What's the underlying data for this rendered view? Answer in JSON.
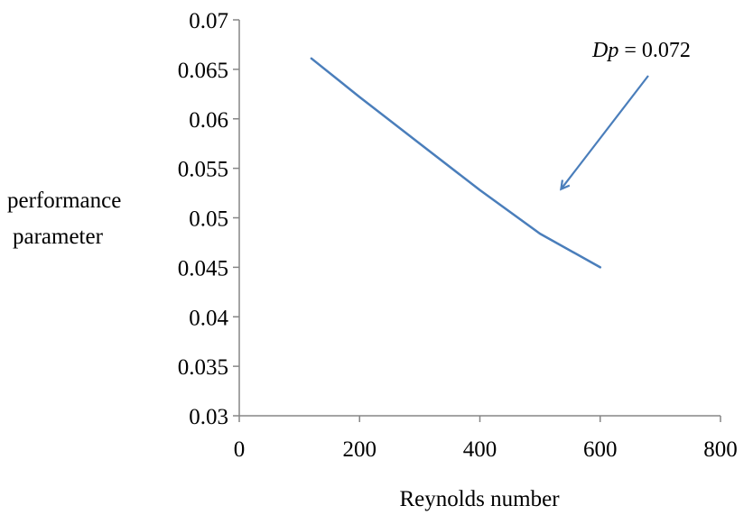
{
  "chart_data": {
    "type": "line",
    "title": "",
    "xlabel": "Reynolds number",
    "ylabel_lines": [
      "performance",
      "parameter"
    ],
    "xlim": [
      0,
      800
    ],
    "ylim": [
      0.03,
      0.07
    ],
    "x_ticks": [
      0,
      200,
      400,
      600,
      800
    ],
    "x_tick_labels": [
      "0",
      "200",
      "400",
      "600",
      "800"
    ],
    "y_ticks": [
      0.03,
      0.035,
      0.04,
      0.045,
      0.05,
      0.055,
      0.06,
      0.065,
      0.07
    ],
    "y_tick_labels": [
      "0.03",
      "0.035",
      "0.04",
      "0.045",
      "0.05",
      "0.055",
      "0.06",
      "0.065",
      "0.07"
    ],
    "grid": false,
    "legend": "none",
    "series": [
      {
        "color": "#4a7ebb",
        "x": [
          120,
          200,
          300,
          400,
          500,
          600
        ],
        "y": [
          0.0661,
          0.0622,
          0.0575,
          0.0528,
          0.0484,
          0.045
        ]
      }
    ],
    "annotations": [
      {
        "label_italic": "Dp",
        "label_rest": " = 0.072",
        "arrow_target": {
          "x": 535,
          "y": 0.0529
        }
      }
    ]
  }
}
